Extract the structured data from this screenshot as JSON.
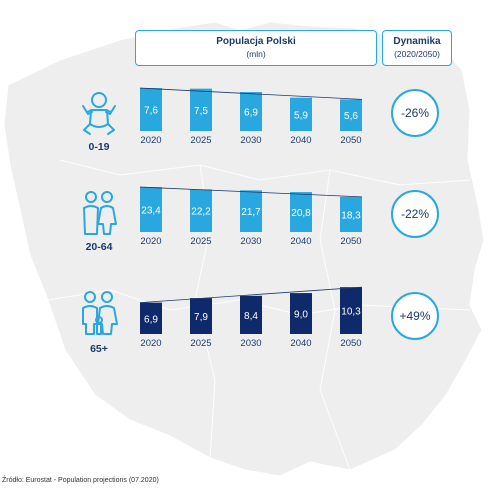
{
  "header": {
    "title": "Populacja Polski",
    "unit": "(mln)",
    "dynamics_title": "Dynamika",
    "dynamics_period": "(2020/2050)"
  },
  "groups": [
    {
      "label": "0-19",
      "icon": "baby-icon",
      "dynamics": "-26%"
    },
    {
      "label": "20-64",
      "icon": "adults-icon",
      "dynamics": "-22%"
    },
    {
      "label": "65+",
      "icon": "elderly-icon",
      "dynamics": "+49%"
    }
  ],
  "source": "Źródło: Eurostat - Population projections (07.2020)",
  "colors": {
    "light": "#29a8e0",
    "dark": "#0f2a6b",
    "map": "#eeeeee",
    "text": "#1d3a6e"
  },
  "chart_data": [
    {
      "type": "bar",
      "categories": [
        "2020",
        "2025",
        "2030",
        "2040",
        "2050"
      ],
      "values": [
        7.6,
        7.5,
        6.9,
        5.9,
        5.6
      ],
      "value_labels": [
        "7,6",
        "7,5",
        "6,9",
        "5,9",
        "5,6"
      ]
    },
    {
      "type": "bar",
      "categories": [
        "2020",
        "2025",
        "2030",
        "2040",
        "2050"
      ],
      "values": [
        23.4,
        22.2,
        21.7,
        20.8,
        18.3
      ],
      "value_labels": [
        "23,4",
        "22,2",
        "21,7",
        "20,8",
        "18,3"
      ]
    },
    {
      "type": "bar",
      "categories": [
        "2020",
        "2025",
        "2030",
        "2040",
        "2050"
      ],
      "values": [
        6.9,
        7.9,
        8.4,
        9.0,
        10.3
      ],
      "value_labels": [
        "6,9",
        "7,9",
        "8,4",
        "9,0",
        "10,3"
      ]
    }
  ]
}
